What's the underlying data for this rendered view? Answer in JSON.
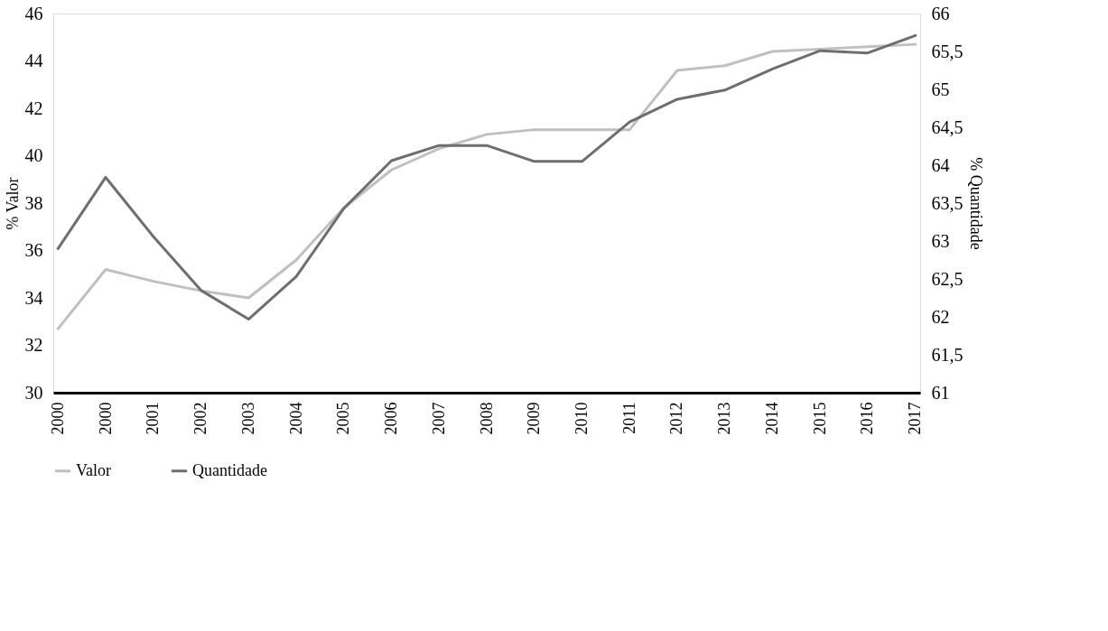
{
  "chart_data": {
    "type": "line",
    "categories": [
      "2000",
      "2000",
      "2001",
      "2002",
      "2003",
      "2004",
      "2005",
      "2006",
      "2007",
      "2008",
      "2009",
      "2010",
      "2011",
      "2012",
      "2013",
      "2014",
      "2015",
      "2016",
      "2017"
    ],
    "ylabel": "% Valor",
    "y2label": "% Quantidade",
    "ylim": [
      30,
      46
    ],
    "yticks": [
      30,
      32,
      34,
      36,
      38,
      40,
      42,
      44,
      46
    ],
    "y2lim": [
      61,
      66
    ],
    "y2ticks": [
      61,
      {
        "value": 61.5,
        "label": "61,5"
      },
      62,
      {
        "value": 62.5,
        "label": "62,5"
      },
      63,
      {
        "value": 63.5,
        "label": "63,5"
      },
      64,
      {
        "value": 64.5,
        "label": "64,5"
      },
      65,
      {
        "value": 65.5,
        "label": "65,5"
      },
      66
    ],
    "legend": "bottom left",
    "grid": false,
    "marker": "none",
    "line_style": "solid",
    "series": [
      {
        "name": "Valor",
        "color": "#c0c0c0",
        "values": [
          32.7,
          35.2,
          34.7,
          34.3,
          34.0,
          35.6,
          37.8,
          39.4,
          40.3,
          40.9,
          41.1,
          41.1,
          41.1,
          43.6,
          43.8,
          44.4,
          44.5,
          44.6,
          44.7
        ]
      },
      {
        "name": "Quantidade",
        "color": "#6e6e6e",
        "axis": "y2",
        "values": [
          62.9,
          63.84,
          63.06,
          62.35,
          61.97,
          62.53,
          63.43,
          64.06,
          64.26,
          64.26,
          64.05,
          64.05,
          64.57,
          64.87,
          64.99,
          65.27,
          65.51,
          65.48,
          65.71
        ]
      }
    ]
  }
}
